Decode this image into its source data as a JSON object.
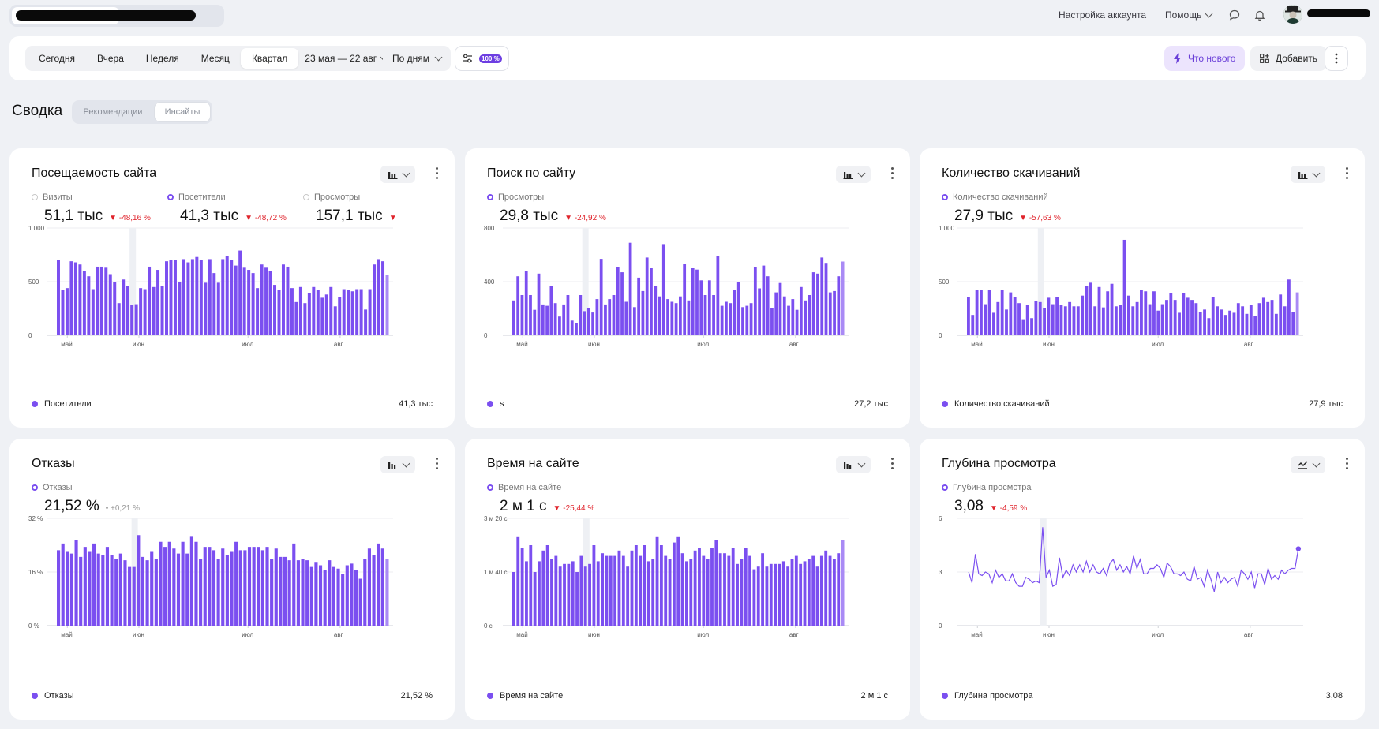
{
  "topbar": {
    "help_label": "Помощь",
    "account_settings_label": "Настройка аккаунта"
  },
  "filters": {
    "periods": [
      "Сегодня",
      "Вчера",
      "Неделя",
      "Месяц",
      "Квартал"
    ],
    "active_period": "Квартал",
    "date_range": "23 мая — 22 авг",
    "grouping": "По дням",
    "sampling_badge": "100 %",
    "whats_new_label": "Что нового",
    "add_label": "Добавить"
  },
  "section": {
    "title": "Сводка",
    "tabs": [
      "Рекомендации",
      "Инсайты"
    ]
  },
  "colors": {
    "accent": "#7b4ff0",
    "negative": "#e0242c",
    "background": "#eff1f5"
  },
  "cards": [
    {
      "title": "Посещаемость сайта",
      "metrics": [
        {
          "label": "Визиты",
          "value": "51,1 тыс",
          "delta": "-48,16 %",
          "selected": false
        },
        {
          "label": "Посетители",
          "value": "41,3 тыс",
          "delta": "-48,72 %",
          "selected": true
        },
        {
          "label": "Просмотры",
          "value": "157,1 тыс",
          "delta": "",
          "selected": false
        }
      ],
      "legend": "Посетители",
      "total": "41,3 тыс"
    },
    {
      "title": "Поиск по сайту",
      "metrics": [
        {
          "label": "Просмотры",
          "value": "29,8 тыс",
          "delta": "-24,92 %",
          "selected": true
        }
      ],
      "legend": "s",
      "total": "27,2 тыс"
    },
    {
      "title": "Количество скачиваний",
      "metrics": [
        {
          "label": "Количество скачиваний",
          "value": "27,9 тыс",
          "delta": "-57,63 %",
          "selected": true
        }
      ],
      "legend": "Количество скачиваний",
      "total": "27,9 тыс"
    },
    {
      "title": "Отказы",
      "metrics": [
        {
          "label": "Отказы",
          "value": "21,52 %",
          "delta": "+0,21 %",
          "selected": true,
          "neutral": true
        }
      ],
      "legend": "Отказы",
      "total": "21,52 %"
    },
    {
      "title": "Время на сайте",
      "metrics": [
        {
          "label": "Время на сайте",
          "value": "2 м 1 с",
          "delta": "-25,44 %",
          "selected": true
        }
      ],
      "legend": "Время на сайте",
      "total": "2 м 1 с"
    },
    {
      "title": "Глубина просмотра",
      "metrics": [
        {
          "label": "Глубина просмотра",
          "value": "3,08",
          "delta": "-4,59 %",
          "selected": true
        }
      ],
      "legend": "Глубина просмотра",
      "total": "3,08"
    }
  ],
  "chart_data": [
    {
      "type": "bar",
      "name": "visitors",
      "x_ticks": [
        "май",
        "июн",
        "июл",
        "авг"
      ],
      "y_ticks": [
        "0",
        "500",
        "1 000"
      ],
      "ylim": [
        0,
        1000
      ],
      "values": [
        700,
        420,
        440,
        690,
        680,
        660,
        600,
        550,
        430,
        640,
        640,
        630,
        570,
        500,
        300,
        520,
        460,
        280,
        290,
        440,
        430,
        640,
        450,
        610,
        460,
        690,
        700,
        700,
        500,
        710,
        680,
        710,
        730,
        700,
        490,
        710,
        580,
        490,
        710,
        740,
        700,
        650,
        790,
        630,
        610,
        580,
        440,
        660,
        630,
        600,
        470,
        420,
        660,
        640,
        440,
        310,
        450,
        300,
        390,
        450,
        420,
        350,
        380,
        450,
        270,
        360,
        430,
        420,
        410,
        430,
        430,
        240,
        430,
        660,
        710,
        690,
        560
      ],
      "highlight_index": 17
    },
    {
      "type": "bar",
      "name": "search",
      "x_ticks": [
        "май",
        "июн",
        "июл",
        "авг"
      ],
      "y_ticks": [
        "0",
        "400",
        "800"
      ],
      "ylim": [
        0,
        800
      ],
      "values": [
        260,
        440,
        300,
        480,
        300,
        190,
        460,
        230,
        220,
        370,
        240,
        140,
        230,
        300,
        110,
        90,
        300,
        180,
        200,
        170,
        270,
        570,
        230,
        270,
        300,
        510,
        470,
        250,
        690,
        210,
        430,
        330,
        580,
        500,
        370,
        290,
        680,
        270,
        250,
        240,
        290,
        530,
        260,
        500,
        490,
        410,
        300,
        410,
        300,
        590,
        220,
        250,
        240,
        340,
        400,
        210,
        220,
        240,
        510,
        350,
        520,
        440,
        200,
        320,
        390,
        290,
        220,
        270,
        190,
        360,
        260,
        300,
        470,
        460,
        580,
        540,
        320,
        330,
        440,
        550
      ],
      "highlight_index": 17
    },
    {
      "type": "bar",
      "name": "downloads",
      "x_ticks": [
        "май",
        "июн",
        "июл",
        "авг"
      ],
      "y_ticks": [
        "0",
        "500",
        "1 000"
      ],
      "ylim": [
        0,
        1000
      ],
      "values": [
        360,
        190,
        420,
        420,
        290,
        420,
        210,
        310,
        420,
        240,
        400,
        360,
        300,
        150,
        280,
        160,
        320,
        310,
        250,
        350,
        290,
        360,
        280,
        270,
        310,
        270,
        270,
        370,
        460,
        490,
        270,
        450,
        260,
        410,
        480,
        270,
        280,
        890,
        370,
        270,
        310,
        420,
        410,
        290,
        410,
        230,
        290,
        330,
        390,
        330,
        210,
        390,
        350,
        330,
        300,
        220,
        240,
        160,
        360,
        270,
        240,
        190,
        230,
        210,
        300,
        270,
        200,
        280,
        180,
        300,
        350,
        310,
        330,
        200,
        380,
        270,
        520,
        220,
        400
      ],
      "highlight_index": 17
    },
    {
      "type": "bar",
      "name": "bounce",
      "x_ticks": [
        "май",
        "июн",
        "июл",
        "авг"
      ],
      "y_ticks": [
        "0 %",
        "16 %",
        "32 %"
      ],
      "ylim": [
        0,
        32
      ],
      "values": [
        22.5,
        24.5,
        22,
        21.5,
        25.5,
        20.5,
        23.5,
        22,
        24.5,
        21.5,
        21,
        23.5,
        21,
        20,
        21.5,
        19.5,
        17.5,
        17.5,
        27,
        20.5,
        19.5,
        22,
        20,
        25,
        23.5,
        25,
        23,
        21.5,
        25,
        21.5,
        26.5,
        25,
        20,
        23.5,
        23.5,
        22.5,
        20,
        23,
        21,
        22,
        25,
        22.5,
        22.5,
        23.5,
        23.5,
        23.5,
        22.5,
        23.5,
        20,
        23,
        20.5,
        20.5,
        19.5,
        24.5,
        19.5,
        20,
        19.5,
        17.5,
        19,
        18,
        16.5,
        19.5,
        17.5,
        17,
        15.5,
        18,
        18.5,
        16.5,
        14,
        20,
        23,
        21,
        24.5,
        23,
        20
      ],
      "highlight_index": 17
    },
    {
      "type": "bar",
      "name": "time_on_site",
      "x_ticks": [
        "май",
        "июн",
        "июл",
        "авг"
      ],
      "y_ticks": [
        "0 с",
        "1 м 40 с",
        "3 м 20 с"
      ],
      "ylim": [
        0,
        200
      ],
      "values": [
        100,
        165,
        145,
        120,
        150,
        100,
        120,
        140,
        150,
        125,
        130,
        110,
        115,
        115,
        120,
        100,
        130,
        110,
        115,
        150,
        120,
        135,
        130,
        130,
        130,
        140,
        130,
        110,
        140,
        150,
        130,
        150,
        120,
        125,
        165,
        150,
        130,
        125,
        155,
        165,
        135,
        120,
        125,
        140,
        145,
        130,
        125,
        145,
        160,
        135,
        135,
        130,
        145,
        115,
        125,
        145,
        130,
        105,
        110,
        135,
        110,
        115,
        115,
        115,
        120,
        110,
        125,
        130,
        115,
        120,
        125,
        130,
        110,
        130,
        140,
        130,
        125,
        135,
        160
      ],
      "highlight_index": 17
    },
    {
      "type": "line",
      "name": "depth",
      "x_ticks": [
        "май",
        "июн",
        "июл",
        "авг"
      ],
      "y_ticks": [
        "0",
        "3",
        "6"
      ],
      "ylim": [
        0,
        6
      ],
      "values": [
        3.0,
        2.4,
        4.0,
        2.9,
        2.8,
        3.0,
        2.9,
        2.4,
        3.1,
        2.7,
        2.9,
        2.5,
        2.5,
        2.9,
        2.4,
        2.2,
        2.2,
        2.7,
        2.6,
        2.4,
        2.5,
        2.4,
        5.5,
        2.7,
        3.1,
        2.2,
        2.3,
        3.8,
        2.7,
        3.1,
        2.8,
        3.4,
        3.0,
        3.4,
        3.0,
        3.6,
        3.0,
        3.4,
        3.0,
        2.9,
        3.2,
        2.8,
        3.5,
        3.7,
        3.1,
        3.4,
        3.0,
        3.3,
        2.9,
        3.9,
        3.2,
        3.7,
        2.9,
        2.9,
        3.2,
        3.2,
        3.4,
        3.2,
        2.7,
        3.5,
        3.3,
        2.9,
        2.9,
        2.8,
        3.0,
        2.6,
        2.5,
        3.3,
        2.6,
        2.7,
        2.2,
        3.1,
        2.6,
        1.9,
        3.0,
        2.4,
        2.7,
        2.4,
        2.6,
        2.7,
        2.2,
        3.1,
        2.9,
        2.6,
        3.0,
        2.1,
        2.9,
        2.9,
        2.3,
        3.2,
        2.6,
        2.8,
        2.6,
        3.1,
        2.9,
        3.1,
        3.2,
        3.2,
        4.3
      ],
      "highlight_index": 22
    }
  ]
}
